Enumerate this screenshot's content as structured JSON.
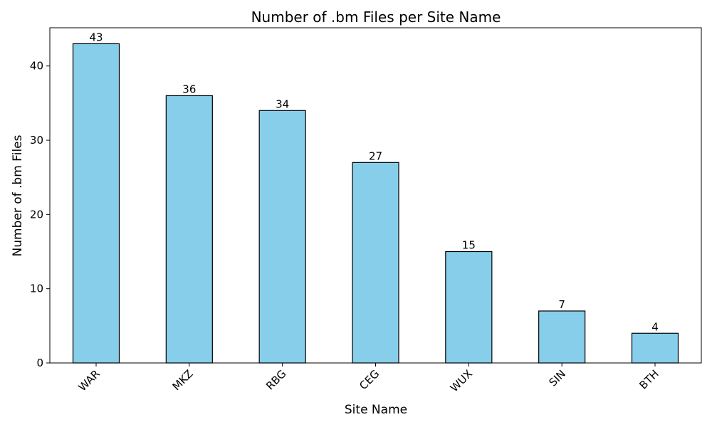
{
  "chart_data": {
    "type": "bar",
    "title": "Number of .bm Files per Site Name",
    "xlabel": "Site Name",
    "ylabel": "Number of .bm Files",
    "categories": [
      "WAR",
      "MKZ",
      "RBG",
      "CEG",
      "WUX",
      "SIN",
      "BTH"
    ],
    "values": [
      43,
      36,
      34,
      27,
      15,
      7,
      4
    ],
    "ylim": [
      0,
      45.15
    ],
    "yticks": [
      0,
      10,
      20,
      30,
      40
    ],
    "bar_color": "#87ceeb",
    "edge_color": "#000000",
    "grid": false,
    "data_labels": true,
    "xtick_rotation": 45
  }
}
